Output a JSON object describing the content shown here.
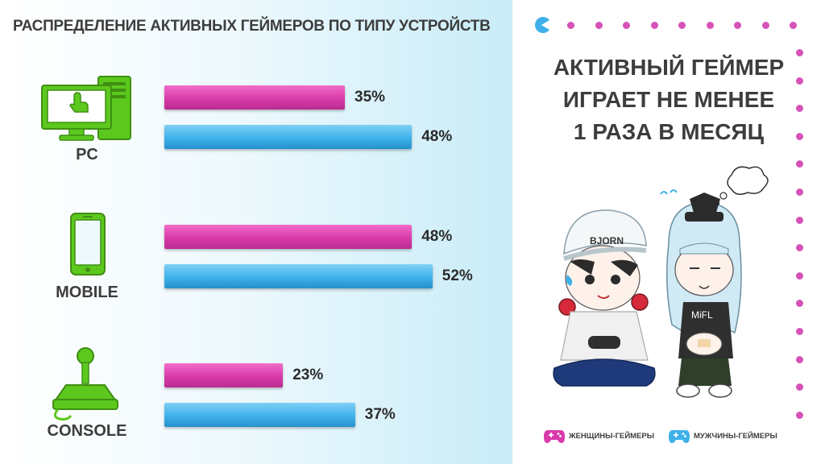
{
  "chart_data": {
    "type": "bar",
    "orientation": "horizontal",
    "title": "РАСПРЕДЕЛЕНИЕ АКТИВНЫХ ГЕЙМЕРОВ ПО ТИПУ УСТРОЙСТВ",
    "categories": [
      "PC",
      "MOBILE",
      "CONSOLE"
    ],
    "series": [
      {
        "name": "ЖЕНЩИНЫ-ГЕЙМЕРЫ",
        "values": [
          35,
          48,
          23
        ],
        "labels": [
          "35%",
          "48%",
          "23%"
        ],
        "color": "#d93aaa"
      },
      {
        "name": "МУЖЧИНЫ-ГЕЙМЕРЫ",
        "values": [
          48,
          52,
          37
        ],
        "labels": [
          "48%",
          "52%",
          "37%"
        ],
        "color": "#3eb1ea"
      }
    ],
    "xlim": [
      0,
      100
    ],
    "grid": false,
    "legend": "bottom-right",
    "icons": [
      "pc-icon",
      "mobile-icon",
      "console-joystick-icon"
    ]
  },
  "headline": {
    "lines": [
      "АКТИВНЫЙ ГЕЙМЕР",
      "ИГРАЕТ НЕ МЕНЕЕ",
      "1 РАЗА В МЕСЯЦ"
    ]
  },
  "illustration": {
    "cap_text": "BJORN",
    "shirt_text": "MiFL"
  },
  "colors": {
    "icon_green": "#5cc81e",
    "dots": "#d652b8",
    "pacman": "#3eb1ea",
    "text": "#3d3d3d"
  }
}
